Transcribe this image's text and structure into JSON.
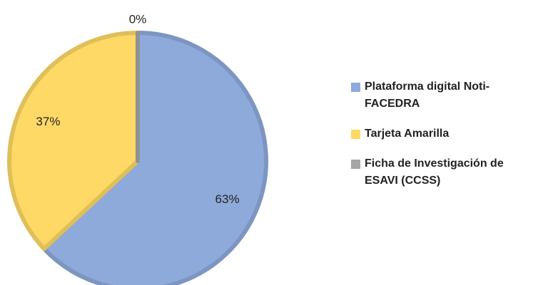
{
  "chart_data": {
    "type": "pie",
    "categories": [
      "Plataforma digital Noti-FACEDRA",
      "Tarjeta Amarilla",
      "Ficha de Investigación de ESAVI (CCSS)"
    ],
    "values": [
      63,
      37,
      0
    ],
    "value_labels": [
      "63%",
      "37%",
      "0%"
    ],
    "colors": [
      "#8eaadb",
      "#ffd966",
      "#a5a5a5"
    ],
    "legend": "right"
  }
}
